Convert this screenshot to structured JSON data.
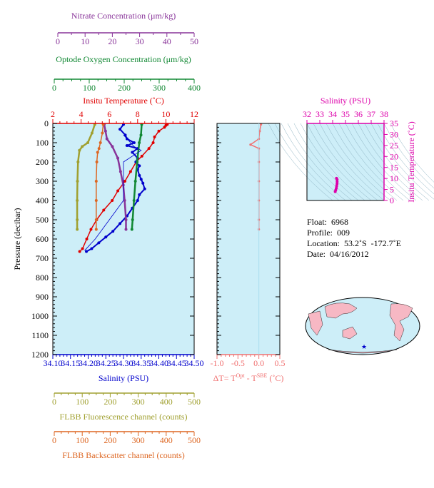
{
  "float_info": {
    "float": "Float:  6968",
    "profile": "Profile:  009",
    "location": "Location:  53.2˚S  -172.7˚E",
    "date": "Date:  04/16/2012"
  },
  "footer_text": "",
  "colors": {
    "temperature": "#e00000",
    "salinity": "#0000cc",
    "oxygen": "#118833",
    "nitrate": "#883399",
    "fluorescence": "#a0a030",
    "backscatter": "#dd6622",
    "delta_t": "#f07070",
    "ts_magenta": "#dd00aa",
    "plot_bg": "#cdeef8",
    "frame": "#665522"
  },
  "chart_data": [
    {
      "id": "main_profile",
      "type": "line",
      "ylabel": "Pressure (decibar)",
      "ylim": [
        1200,
        0
      ],
      "yticks": [
        0,
        100,
        200,
        300,
        400,
        500,
        600,
        700,
        800,
        900,
        1000,
        1100,
        1200
      ],
      "axes": {
        "temperature": {
          "label": "Insitu Temperature (˚C)",
          "range": [
            2,
            12
          ],
          "ticks": [
            "2",
            "4",
            "6",
            "8",
            "10",
            "12"
          ]
        },
        "salinity": {
          "label": "Salinity (PSU)",
          "range": [
            34.1,
            34.5
          ],
          "ticks": [
            "34.10",
            "34.15",
            "34.20",
            "34.25",
            "34.30",
            "34.35",
            "34.40",
            "34.45",
            "34.50"
          ]
        },
        "oxygen": {
          "label": "Optode Oxygen Concentration (μm/kg)",
          "range": [
            0,
            400
          ],
          "ticks": [
            "0",
            "100",
            "200",
            "300",
            "400"
          ]
        },
        "nitrate": {
          "label": "Nitrate Concentration (μm/kg)",
          "range": [
            0,
            50
          ],
          "ticks": [
            "0",
            "10",
            "20",
            "30",
            "40",
            "50"
          ]
        },
        "fluorescence": {
          "label": "FLBB Fluorescence channel (counts)",
          "range": [
            0,
            500
          ],
          "ticks": [
            "0",
            "100",
            "200",
            "300",
            "400",
            "500"
          ]
        },
        "backscatter": {
          "label": "FLBB Backscatter channel (counts)",
          "range": [
            0,
            500
          ],
          "ticks": [
            "0",
            "100",
            "200",
            "300",
            "400",
            "500"
          ]
        }
      },
      "series": [
        {
          "key": "temperature",
          "points": [
            [
              10.1,
              5
            ],
            [
              10.0,
              10
            ],
            [
              9.9,
              20
            ],
            [
              9.5,
              40
            ],
            [
              9.2,
              70
            ],
            [
              9.1,
              100
            ],
            [
              8.8,
              130
            ],
            [
              8.3,
              170
            ],
            [
              7.9,
              200
            ],
            [
              7.5,
              250
            ],
            [
              7.1,
              300
            ],
            [
              6.6,
              350
            ],
            [
              6.2,
              400
            ],
            [
              5.6,
              450
            ],
            [
              5.1,
              500
            ],
            [
              4.7,
              550
            ],
            [
              4.4,
              600
            ],
            [
              4.1,
              650
            ],
            [
              3.9,
              665
            ]
          ]
        },
        {
          "key": "salinity",
          "points": [
            [
              34.3,
              5
            ],
            [
              34.29,
              30
            ],
            [
              34.305,
              60
            ],
            [
              34.31,
              80
            ],
            [
              34.33,
              100
            ],
            [
              34.31,
              115
            ],
            [
              34.34,
              130
            ],
            [
              34.325,
              150
            ],
            [
              34.34,
              180
            ],
            [
              34.335,
              200
            ],
            [
              34.345,
              220
            ],
            [
              34.34,
              240
            ],
            [
              34.345,
              270
            ],
            [
              34.35,
              290
            ],
            [
              34.355,
              310
            ],
            [
              34.36,
              340
            ],
            [
              34.345,
              370
            ],
            [
              34.34,
              400
            ],
            [
              34.325,
              440
            ],
            [
              34.31,
              480
            ],
            [
              34.29,
              520
            ],
            [
              34.27,
              560
            ],
            [
              34.25,
              590
            ],
            [
              34.23,
              620
            ],
            [
              34.21,
              650
            ],
            [
              34.195,
              665
            ]
          ]
        },
        {
          "key": "oxygen",
          "points": [
            [
              250,
              5
            ],
            [
              248,
              60
            ],
            [
              243,
              100
            ],
            [
              237,
              200
            ],
            [
              232,
              300
            ],
            [
              228,
              400
            ],
            [
              224,
              500
            ],
            [
              222,
              550
            ]
          ]
        },
        {
          "key": "nitrate",
          "points": [
            [
              17,
              5
            ],
            [
              17.5,
              40
            ],
            [
              18,
              80
            ],
            [
              20,
              120
            ],
            [
              22,
              180
            ],
            [
              23,
              250
            ],
            [
              24,
              320
            ],
            [
              24.5,
              400
            ],
            [
              25,
              500
            ],
            [
              25,
              550
            ]
          ]
        },
        {
          "key": "fluorescence",
          "points": [
            [
              145,
              5
            ],
            [
              135,
              50
            ],
            [
              120,
              100
            ],
            [
              100,
              120
            ],
            [
              90,
              140
            ],
            [
              85,
              200
            ],
            [
              83,
              300
            ],
            [
              82,
              400
            ],
            [
              82,
              500
            ],
            [
              82,
              550
            ]
          ]
        },
        {
          "key": "backscatter",
          "points": [
            [
              175,
              5
            ],
            [
              172,
              50
            ],
            [
              165,
              100
            ],
            [
              160,
              130
            ],
            [
              155,
              150
            ],
            [
              152,
              200
            ],
            [
              150,
              300
            ],
            [
              150,
              400
            ],
            [
              150,
              500
            ],
            [
              150,
              550
            ]
          ]
        },
        {
          "key": "thin_blue",
          "points": [
            [
              34.3,
              60
            ],
            [
              34.33,
              120
            ],
            [
              34.35,
              140
            ],
            [
              34.3,
              200
            ],
            [
              34.3,
              300
            ],
            [
              34.3,
              400
            ],
            [
              34.28,
              450
            ],
            [
              34.26,
              500
            ],
            [
              34.24,
              550
            ],
            [
              34.22,
              600
            ],
            [
              34.19,
              660
            ]
          ]
        }
      ]
    },
    {
      "id": "delta_t",
      "type": "line",
      "xlabel": "ΔT= T",
      "xlabel_sup1": "Opt",
      "xlabel_mid": " - T",
      "xlabel_sup2": "SBE",
      "xlabel_end": " (˚C)",
      "xlim": [
        -1.0,
        0.5
      ],
      "ticks": [
        "-1.0",
        "-0.5",
        "0.0",
        "0.5"
      ],
      "points": [
        [
          0.05,
          5
        ],
        [
          0.02,
          40
        ],
        [
          0.0,
          80
        ],
        [
          -0.2,
          110
        ],
        [
          0.0,
          130
        ],
        [
          0.0,
          200
        ],
        [
          0.0,
          300
        ],
        [
          0.0,
          400
        ],
        [
          0.0,
          500
        ],
        [
          0.0,
          550
        ]
      ]
    },
    {
      "id": "ts_diagram",
      "type": "scatter",
      "xlabel": "Salinity (PSU)",
      "ylabel": "Insitu Temperature (˚C)",
      "xlim": [
        32,
        38
      ],
      "ylim": [
        0,
        35
      ],
      "xticks": [
        "32",
        "33",
        "34",
        "35",
        "36",
        "37",
        "38"
      ],
      "yticks": [
        "0",
        "5",
        "10",
        "15",
        "20",
        "25",
        "30",
        "35"
      ],
      "points": [
        [
          34.3,
          10.1
        ],
        [
          34.35,
          9.5
        ],
        [
          34.35,
          8.5
        ],
        [
          34.34,
          7.5
        ],
        [
          34.31,
          6.5
        ],
        [
          34.28,
          5.5
        ],
        [
          34.24,
          4.7
        ],
        [
          34.2,
          4.0
        ]
      ]
    }
  ]
}
